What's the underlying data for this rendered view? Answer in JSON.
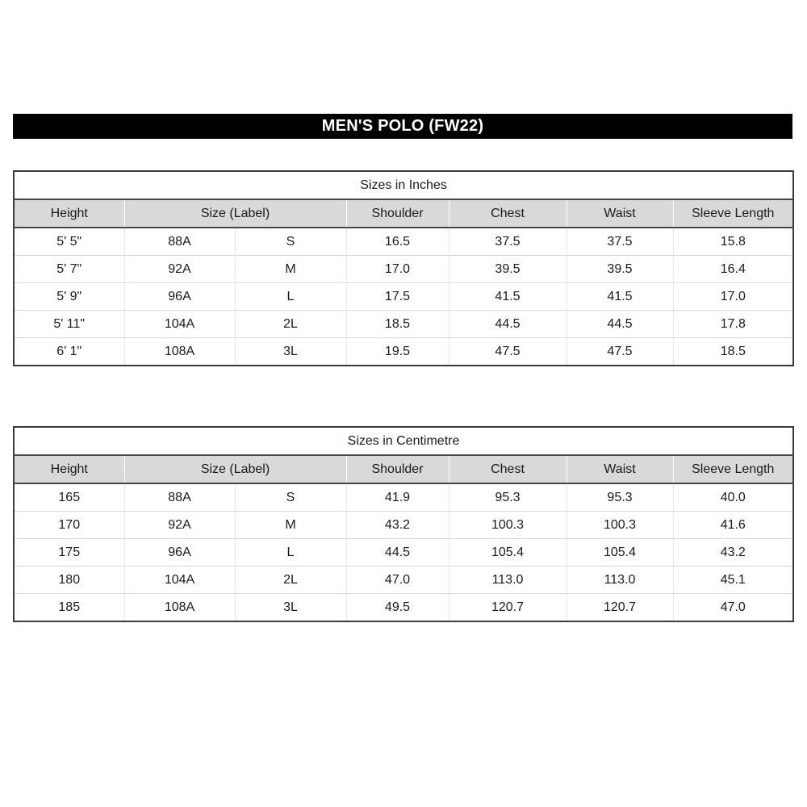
{
  "banner": {
    "title": "MEN'S POLO (FW22)"
  },
  "columns": [
    "Height",
    "Size (Label)",
    "Shoulder",
    "Chest",
    "Waist",
    "Sleeve Length"
  ],
  "tables": [
    {
      "title": "Sizes in Inches",
      "rows": [
        [
          "5' 5\"",
          "88A",
          "S",
          "16.5",
          "37.5",
          "37.5",
          "15.8"
        ],
        [
          "5' 7\"",
          "92A",
          "M",
          "17.0",
          "39.5",
          "39.5",
          "16.4"
        ],
        [
          "5' 9\"",
          "96A",
          "L",
          "17.5",
          "41.5",
          "41.5",
          "17.0"
        ],
        [
          "5' 11\"",
          "104A",
          "2L",
          "18.5",
          "44.5",
          "44.5",
          "17.8"
        ],
        [
          "6' 1\"",
          "108A",
          "3L",
          "19.5",
          "47.5",
          "47.5",
          "18.5"
        ]
      ]
    },
    {
      "title": "Sizes in Centimetre",
      "rows": [
        [
          "165",
          "88A",
          "S",
          "41.9",
          "95.3",
          "95.3",
          "40.0"
        ],
        [
          "170",
          "92A",
          "M",
          "43.2",
          "100.3",
          "100.3",
          "41.6"
        ],
        [
          "175",
          "96A",
          "L",
          "44.5",
          "105.4",
          "105.4",
          "43.2"
        ],
        [
          "180",
          "104A",
          "2L",
          "47.0",
          "113.0",
          "113.0",
          "45.1"
        ],
        [
          "185",
          "108A",
          "3L",
          "49.5",
          "120.7",
          "120.7",
          "47.0"
        ]
      ]
    }
  ],
  "colors": {
    "banner_bg": "#000000",
    "banner_text": "#ffffff",
    "header_bg": "#d9d9d9",
    "dark_border": "#3a3a3a",
    "grid_line": "#d9d9d9"
  }
}
